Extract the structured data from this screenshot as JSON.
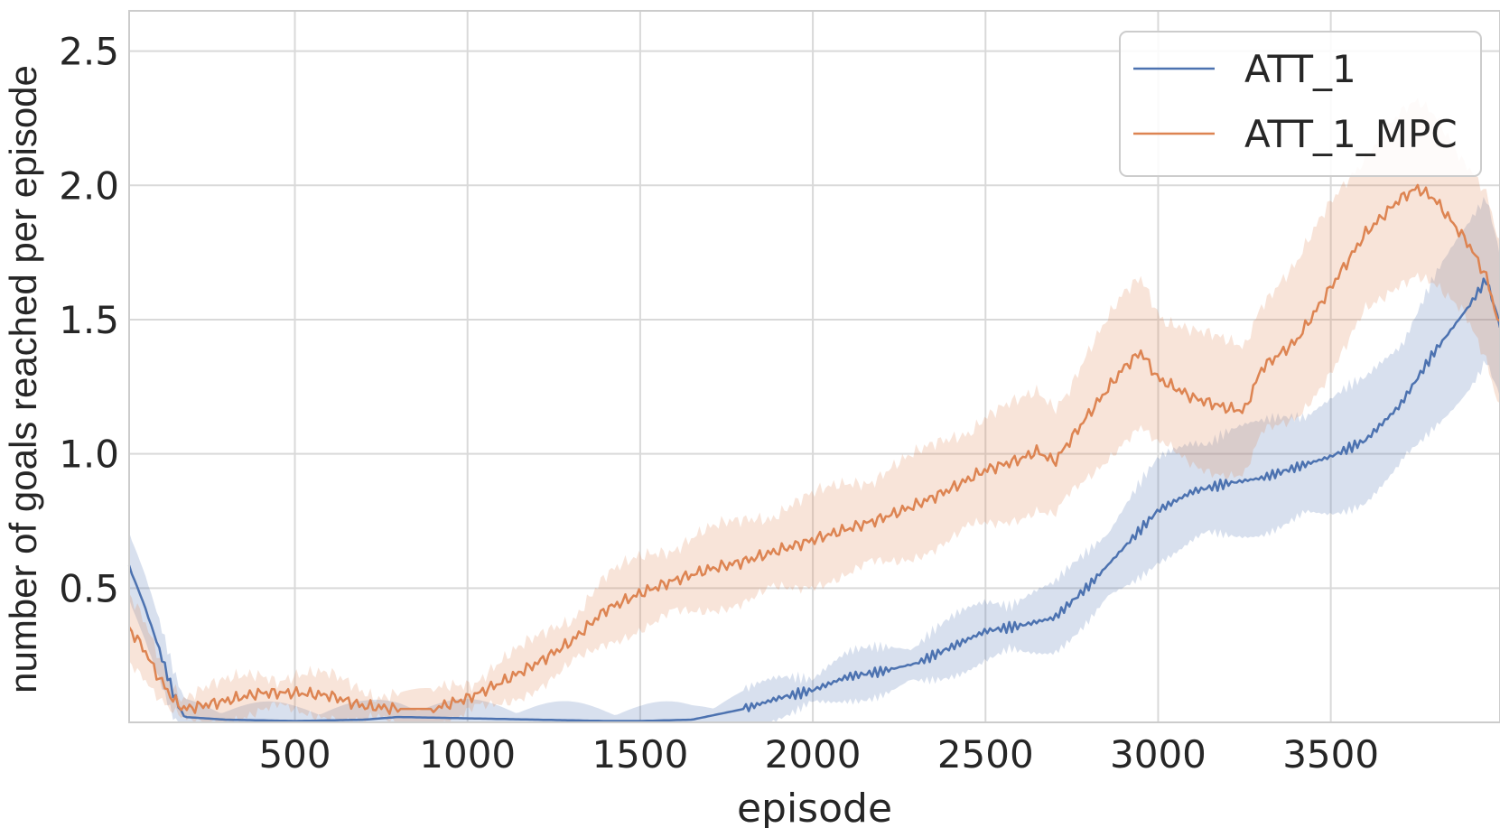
{
  "chart_data": {
    "type": "line",
    "title": "",
    "xlabel": "episode",
    "ylabel": "number of goals reached per episode",
    "xlim": [
      20,
      3990
    ],
    "ylim": [
      0,
      2.65
    ],
    "xticks": [
      500,
      1000,
      1500,
      2000,
      2500,
      3000,
      3500
    ],
    "xtick_labels": [
      "500",
      "1000",
      "1500",
      "2000",
      "2500",
      "3000",
      "3500"
    ],
    "yticks": [
      0.5,
      1.0,
      1.5,
      2.0,
      2.5
    ],
    "ytick_labels": [
      "0.5",
      "1.0",
      "1.5",
      "2.0",
      "2.5"
    ],
    "grid": true,
    "legend_position": "top-right",
    "series": [
      {
        "name": "ATT_1",
        "color": "#4c72b0",
        "x": [
          20,
          60,
          100,
          150,
          180,
          300,
          500,
          700,
          800,
          1000,
          1200,
          1400,
          1500,
          1650,
          1800,
          1900,
          2000,
          2100,
          2200,
          2300,
          2400,
          2500,
          2600,
          2700,
          2800,
          2900,
          3000,
          3100,
          3200,
          3300,
          3400,
          3500,
          3600,
          3700,
          3800,
          3900,
          3950,
          3990
        ],
        "y": [
          0.58,
          0.45,
          0.3,
          0.1,
          0.02,
          0.01,
          0.005,
          0.01,
          0.02,
          0.015,
          0.01,
          0.005,
          0.005,
          0.01,
          0.05,
          0.09,
          0.12,
          0.17,
          0.19,
          0.22,
          0.28,
          0.34,
          0.36,
          0.39,
          0.51,
          0.65,
          0.79,
          0.86,
          0.89,
          0.91,
          0.95,
          0.99,
          1.05,
          1.18,
          1.38,
          1.55,
          1.65,
          1.48
        ]
      },
      {
        "name": "ATT_1_MPC",
        "color": "#dd8452",
        "x": [
          20,
          60,
          100,
          150,
          180,
          300,
          400,
          500,
          600,
          700,
          800,
          900,
          1000,
          1100,
          1200,
          1300,
          1400,
          1500,
          1600,
          1700,
          1800,
          1900,
          2000,
          2100,
          2200,
          2300,
          2400,
          2500,
          2600,
          2650,
          2700,
          2800,
          2900,
          2950,
          3000,
          3100,
          3200,
          3250,
          3300,
          3400,
          3500,
          3600,
          3700,
          3750,
          3800,
          3900,
          3950,
          3990
        ],
        "y": [
          0.35,
          0.28,
          0.18,
          0.08,
          0.05,
          0.08,
          0.11,
          0.11,
          0.1,
          0.06,
          0.05,
          0.05,
          0.09,
          0.15,
          0.22,
          0.3,
          0.42,
          0.48,
          0.53,
          0.57,
          0.6,
          0.64,
          0.68,
          0.72,
          0.76,
          0.81,
          0.87,
          0.94,
          0.98,
          1.01,
          0.97,
          1.15,
          1.32,
          1.38,
          1.28,
          1.21,
          1.17,
          1.16,
          1.32,
          1.42,
          1.62,
          1.82,
          1.95,
          1.99,
          1.95,
          1.78,
          1.66,
          1.47
        ]
      }
    ]
  }
}
